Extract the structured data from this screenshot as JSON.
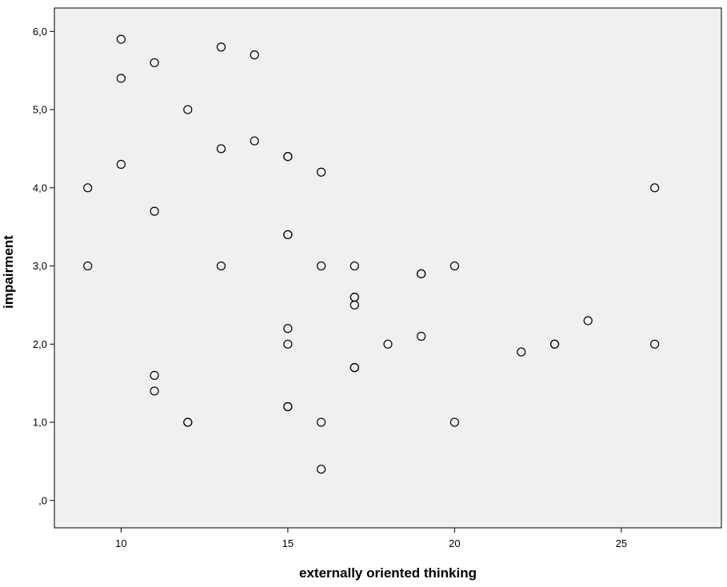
{
  "chart_data": {
    "type": "scatter",
    "title": "",
    "xlabel": "externally oriented thinking",
    "ylabel": "impairment",
    "xlim": [
      8.0,
      28.0
    ],
    "ylim": [
      -0.35,
      6.3
    ],
    "x_ticks": [
      10,
      15,
      20,
      25
    ],
    "x_tick_labels": [
      "10",
      "15",
      "20",
      "25"
    ],
    "y_ticks": [
      0,
      1,
      2,
      3,
      4,
      5,
      6
    ],
    "y_tick_labels": [
      ",0",
      "1,0",
      "2,0",
      "3,0",
      "4,0",
      "5,0",
      "6,0"
    ],
    "grid": false,
    "legend": "none",
    "colors": {
      "plot_background": "#f0f0f0",
      "marker_stroke": "#000000",
      "axis": "#000000"
    },
    "series": [
      {
        "points": [
          {
            "x": 9,
            "y": 4.0
          },
          {
            "x": 9,
            "y": 3.0
          },
          {
            "x": 10,
            "y": 5.9
          },
          {
            "x": 10,
            "y": 5.4
          },
          {
            "x": 10,
            "y": 4.3
          },
          {
            "x": 11,
            "y": 5.6
          },
          {
            "x": 11,
            "y": 3.7
          },
          {
            "x": 11,
            "y": 1.6
          },
          {
            "x": 11,
            "y": 1.4
          },
          {
            "x": 12,
            "y": 5.0
          },
          {
            "x": 12,
            "y": 1.0
          },
          {
            "x": 12,
            "y": 1.0
          },
          {
            "x": 13,
            "y": 5.8
          },
          {
            "x": 13,
            "y": 4.5
          },
          {
            "x": 13,
            "y": 3.0
          },
          {
            "x": 14,
            "y": 5.7
          },
          {
            "x": 14,
            "y": 4.6
          },
          {
            "x": 15,
            "y": 4.4
          },
          {
            "x": 15,
            "y": 4.4
          },
          {
            "x": 15,
            "y": 3.4
          },
          {
            "x": 15,
            "y": 3.4
          },
          {
            "x": 15,
            "y": 2.2
          },
          {
            "x": 15,
            "y": 2.0
          },
          {
            "x": 15,
            "y": 1.2
          },
          {
            "x": 15,
            "y": 1.2
          },
          {
            "x": 16,
            "y": 4.2
          },
          {
            "x": 16,
            "y": 3.0
          },
          {
            "x": 16,
            "y": 1.0
          },
          {
            "x": 16,
            "y": 0.4
          },
          {
            "x": 17,
            "y": 3.0
          },
          {
            "x": 17,
            "y": 2.6
          },
          {
            "x": 17,
            "y": 2.6
          },
          {
            "x": 17,
            "y": 2.5
          },
          {
            "x": 17,
            "y": 1.7
          },
          {
            "x": 17,
            "y": 1.7
          },
          {
            "x": 18,
            "y": 2.0
          },
          {
            "x": 19,
            "y": 2.9
          },
          {
            "x": 19,
            "y": 2.9
          },
          {
            "x": 19,
            "y": 2.1
          },
          {
            "x": 20,
            "y": 3.0
          },
          {
            "x": 20,
            "y": 1.0
          },
          {
            "x": 22,
            "y": 1.9
          },
          {
            "x": 23,
            "y": 2.0
          },
          {
            "x": 23,
            "y": 2.0
          },
          {
            "x": 24,
            "y": 2.3
          },
          {
            "x": 26,
            "y": 4.0
          },
          {
            "x": 26,
            "y": 2.0
          }
        ]
      }
    ]
  }
}
